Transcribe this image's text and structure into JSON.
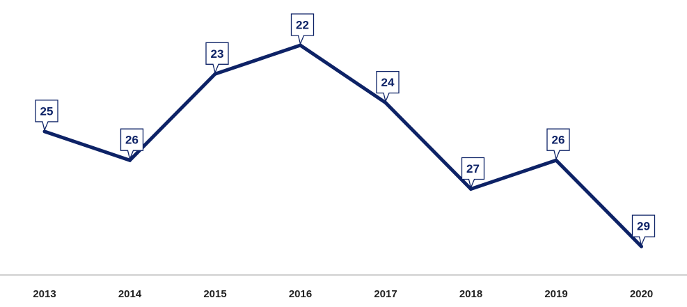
{
  "chart_data": {
    "type": "line",
    "categories": [
      "2013",
      "2014",
      "2015",
      "2016",
      "2017",
      "2018",
      "2019",
      "2020"
    ],
    "series": [
      {
        "values": [
          25,
          26,
          23,
          22,
          24,
          27,
          26,
          29
        ]
      }
    ],
    "title": "",
    "xlabel": "",
    "ylabel": "",
    "ylim": [
      21.5,
      29.5
    ],
    "y_inverted": true,
    "grid": false,
    "legend": "none",
    "colors": {
      "line": "#0d2266",
      "label_border": "#0d2266",
      "label_text": "#0d2266",
      "axis": "#bfbfbf",
      "tick_text": "#222222"
    }
  }
}
